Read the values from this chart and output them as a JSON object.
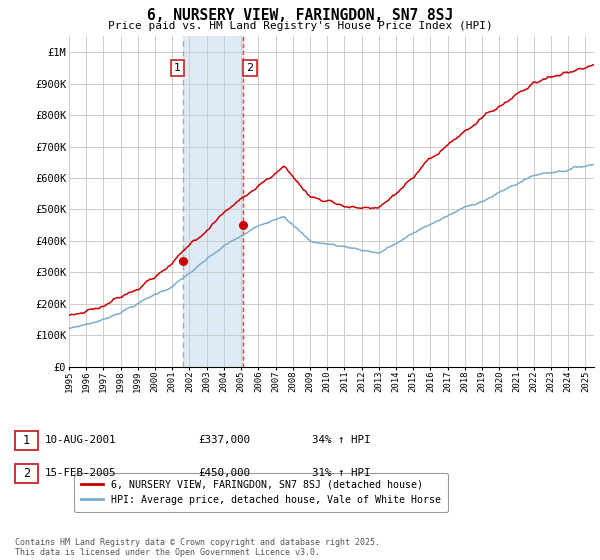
{
  "title": "6, NURSERY VIEW, FARINGDON, SN7 8SJ",
  "subtitle": "Price paid vs. HM Land Registry's House Price Index (HPI)",
  "ylabel_ticks": [
    "£0",
    "£100K",
    "£200K",
    "£300K",
    "£400K",
    "£500K",
    "£600K",
    "£700K",
    "£800K",
    "£900K",
    "£1M"
  ],
  "ytick_values": [
    0,
    100000,
    200000,
    300000,
    400000,
    500000,
    600000,
    700000,
    800000,
    900000,
    1000000
  ],
  "ylim": [
    0,
    1050000
  ],
  "xlim_start": 1995.0,
  "xlim_end": 2025.5,
  "red_line_color": "#cc0000",
  "blue_line_color": "#7aadcc",
  "vline1_x": 2001.61,
  "vline2_x": 2005.12,
  "vline1_color": "#aaaaaa",
  "vline2_color": "#dd4444",
  "sale1_x": 2001.61,
  "sale1_y": 337000,
  "sale2_x": 2005.12,
  "sale2_y": 450000,
  "marker_color": "#cc0000",
  "annotation1_label": "1",
  "annotation2_label": "2",
  "legend_red_label": "6, NURSERY VIEW, FARINGDON, SN7 8SJ (detached house)",
  "legend_blue_label": "HPI: Average price, detached house, Vale of White Horse",
  "table_row1": [
    "1",
    "10-AUG-2001",
    "£337,000",
    "34% ↑ HPI"
  ],
  "table_row2": [
    "2",
    "15-FEB-2005",
    "£450,000",
    "31% ↑ HPI"
  ],
  "footnote": "Contains HM Land Registry data © Crown copyright and database right 2025.\nThis data is licensed under the Open Government Licence v3.0.",
  "bg_color": "#ffffff",
  "plot_bg_color": "#ffffff",
  "grid_color": "#cccccc",
  "highlight_bg_color": "#deeaf5",
  "highlight_x_start": 2001.61,
  "highlight_x_end": 2005.12,
  "annotation_box_color": "#cc3333"
}
